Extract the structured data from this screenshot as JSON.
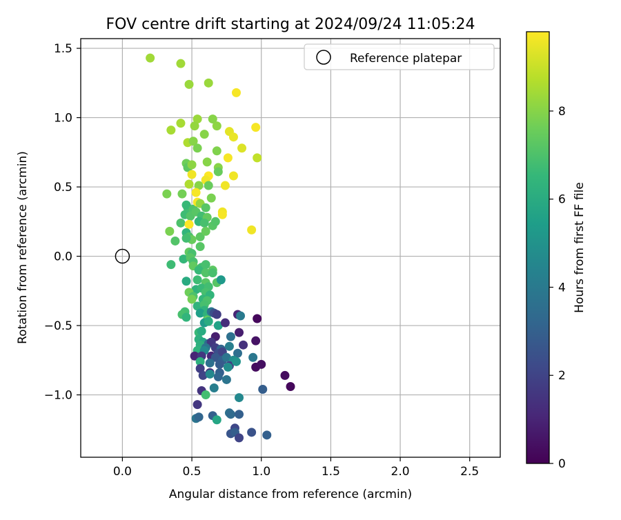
{
  "chart_data": {
    "type": "scatter",
    "title": "FOV centre drift starting at 2024/09/24 11:05:24",
    "xlabel": "Angular distance from reference (arcmin)",
    "ylabel": "Rotation from reference (arcmin)",
    "xlim": [
      -0.3,
      2.72
    ],
    "ylim": [
      -1.45,
      1.57
    ],
    "xticks": [
      0.0,
      0.5,
      1.0,
      1.5,
      2.0,
      2.5
    ],
    "xtick_labels": [
      "0.0",
      "0.5",
      "1.0",
      "1.5",
      "2.0",
      "2.5"
    ],
    "yticks": [
      -1.0,
      -0.5,
      0.0,
      0.5,
      1.0,
      1.5
    ],
    "ytick_labels": [
      "−1.0",
      "−0.5",
      "0.0",
      "0.5",
      "1.0",
      "1.5"
    ],
    "grid": true,
    "legend": {
      "placement": "top-right",
      "entries": [
        {
          "label": "Reference platepar",
          "marker": "open-circle"
        }
      ]
    },
    "reference_point": {
      "x": 0.0,
      "y": 0.0
    },
    "colorbar": {
      "label": "Hours from first FF file",
      "colormap": "viridis",
      "range": [
        0,
        9.8
      ],
      "ticks": [
        0,
        2,
        4,
        6,
        8
      ],
      "tick_labels": [
        "0",
        "2",
        "4",
        "6",
        "8"
      ]
    },
    "colormap_stops": [
      "#440154",
      "#482878",
      "#3e4989",
      "#31688e",
      "#26828e",
      "#1f9e89",
      "#35b779",
      "#6ece58",
      "#b5de2b",
      "#fde725"
    ],
    "points": [
      {
        "x": 0.2,
        "y": 1.43,
        "t": 8.4
      },
      {
        "x": 0.42,
        "y": 1.39,
        "t": 8.4
      },
      {
        "x": 0.48,
        "y": 1.24,
        "t": 8.3
      },
      {
        "x": 0.62,
        "y": 1.25,
        "t": 8.3
      },
      {
        "x": 0.82,
        "y": 1.18,
        "t": 9.7
      },
      {
        "x": 0.35,
        "y": 0.91,
        "t": 8.5
      },
      {
        "x": 0.42,
        "y": 0.96,
        "t": 8.5
      },
      {
        "x": 0.54,
        "y": 0.99,
        "t": 8.3
      },
      {
        "x": 0.52,
        "y": 0.94,
        "t": 8.2
      },
      {
        "x": 0.65,
        "y": 0.99,
        "t": 8.0
      },
      {
        "x": 0.68,
        "y": 0.94,
        "t": 8.1
      },
      {
        "x": 0.59,
        "y": 0.88,
        "t": 8.0
      },
      {
        "x": 0.77,
        "y": 0.9,
        "t": 9.4
      },
      {
        "x": 0.8,
        "y": 0.86,
        "t": 9.5
      },
      {
        "x": 0.96,
        "y": 0.93,
        "t": 9.7
      },
      {
        "x": 0.47,
        "y": 0.82,
        "t": 8.6
      },
      {
        "x": 0.51,
        "y": 0.83,
        "t": 8.0
      },
      {
        "x": 0.54,
        "y": 0.78,
        "t": 7.8
      },
      {
        "x": 0.68,
        "y": 0.76,
        "t": 7.9
      },
      {
        "x": 0.86,
        "y": 0.78,
        "t": 9.3
      },
      {
        "x": 0.76,
        "y": 0.71,
        "t": 9.7
      },
      {
        "x": 0.97,
        "y": 0.71,
        "t": 8.9
      },
      {
        "x": 0.46,
        "y": 0.67,
        "t": 7.6
      },
      {
        "x": 0.47,
        "y": 0.64,
        "t": 7.3
      },
      {
        "x": 0.5,
        "y": 0.66,
        "t": 8.1
      },
      {
        "x": 0.61,
        "y": 0.68,
        "t": 8.0
      },
      {
        "x": 0.69,
        "y": 0.64,
        "t": 8.0
      },
      {
        "x": 0.69,
        "y": 0.61,
        "t": 7.5
      },
      {
        "x": 0.5,
        "y": 0.59,
        "t": 9.6
      },
      {
        "x": 0.62,
        "y": 0.58,
        "t": 9.8
      },
      {
        "x": 0.6,
        "y": 0.55,
        "t": 9.6
      },
      {
        "x": 0.8,
        "y": 0.58,
        "t": 9.6
      },
      {
        "x": 0.48,
        "y": 0.52,
        "t": 8.6
      },
      {
        "x": 0.55,
        "y": 0.51,
        "t": 8.0
      },
      {
        "x": 0.62,
        "y": 0.51,
        "t": 7.5
      },
      {
        "x": 0.74,
        "y": 0.51,
        "t": 9.6
      },
      {
        "x": 0.32,
        "y": 0.45,
        "t": 7.8
      },
      {
        "x": 0.43,
        "y": 0.45,
        "t": 7.7
      },
      {
        "x": 0.53,
        "y": 0.46,
        "t": 9.7
      },
      {
        "x": 0.64,
        "y": 0.42,
        "t": 7.8
      },
      {
        "x": 0.47,
        "y": 0.35,
        "t": 6.8
      },
      {
        "x": 0.46,
        "y": 0.37,
        "t": 6.6
      },
      {
        "x": 0.51,
        "y": 0.34,
        "t": 7.0
      },
      {
        "x": 0.54,
        "y": 0.39,
        "t": 9.7
      },
      {
        "x": 0.56,
        "y": 0.38,
        "t": 8.2
      },
      {
        "x": 0.6,
        "y": 0.35,
        "t": 7.2
      },
      {
        "x": 0.72,
        "y": 0.32,
        "t": 9.6
      },
      {
        "x": 0.72,
        "y": 0.3,
        "t": 9.7
      },
      {
        "x": 0.45,
        "y": 0.3,
        "t": 6.7
      },
      {
        "x": 0.49,
        "y": 0.29,
        "t": 7.1
      },
      {
        "x": 0.53,
        "y": 0.32,
        "t": 7.2
      },
      {
        "x": 0.57,
        "y": 0.29,
        "t": 6.8
      },
      {
        "x": 0.55,
        "y": 0.25,
        "t": 6.5
      },
      {
        "x": 0.61,
        "y": 0.28,
        "t": 7.4
      },
      {
        "x": 0.42,
        "y": 0.24,
        "t": 7.0
      },
      {
        "x": 0.48,
        "y": 0.23,
        "t": 9.8
      },
      {
        "x": 0.59,
        "y": 0.24,
        "t": 6.9
      },
      {
        "x": 0.65,
        "y": 0.22,
        "t": 7.2
      },
      {
        "x": 0.67,
        "y": 0.25,
        "t": 7.1
      },
      {
        "x": 0.34,
        "y": 0.18,
        "t": 7.8
      },
      {
        "x": 0.46,
        "y": 0.17,
        "t": 6.4
      },
      {
        "x": 0.48,
        "y": 0.14,
        "t": 7.0
      },
      {
        "x": 0.5,
        "y": 0.12,
        "t": 7.5
      },
      {
        "x": 0.56,
        "y": 0.14,
        "t": 7.3
      },
      {
        "x": 0.6,
        "y": 0.18,
        "t": 7.5
      },
      {
        "x": 0.93,
        "y": 0.19,
        "t": 9.6
      },
      {
        "x": 0.38,
        "y": 0.11,
        "t": 7.1
      },
      {
        "x": 0.46,
        "y": 0.13,
        "t": 6.8
      },
      {
        "x": 0.56,
        "y": 0.07,
        "t": 7.2
      },
      {
        "x": 0.48,
        "y": 0.03,
        "t": 7.4
      },
      {
        "x": 0.5,
        "y": 0.02,
        "t": 6.9
      },
      {
        "x": 0.44,
        "y": -0.02,
        "t": 6.5
      },
      {
        "x": 0.49,
        "y": -0.01,
        "t": 7.2
      },
      {
        "x": 0.51,
        "y": -0.04,
        "t": 6.9
      },
      {
        "x": 0.35,
        "y": -0.06,
        "t": 6.7
      },
      {
        "x": 0.51,
        "y": -0.07,
        "t": 7.4
      },
      {
        "x": 0.57,
        "y": -0.08,
        "t": 6.8
      },
      {
        "x": 0.55,
        "y": -0.1,
        "t": 6.6
      },
      {
        "x": 0.6,
        "y": -0.06,
        "t": 6.9
      },
      {
        "x": 0.6,
        "y": -0.12,
        "t": 7.1
      },
      {
        "x": 0.65,
        "y": -0.1,
        "t": 7.3
      },
      {
        "x": 0.65,
        "y": -0.12,
        "t": 6.9
      },
      {
        "x": 0.46,
        "y": -0.18,
        "t": 6.0
      },
      {
        "x": 0.54,
        "y": -0.17,
        "t": 6.7
      },
      {
        "x": 0.6,
        "y": -0.19,
        "t": 7.2
      },
      {
        "x": 0.68,
        "y": -0.19,
        "t": 7.2
      },
      {
        "x": 0.71,
        "y": -0.17,
        "t": 5.3
      },
      {
        "x": 0.53,
        "y": -0.24,
        "t": 6.3
      },
      {
        "x": 0.57,
        "y": -0.23,
        "t": 6.6
      },
      {
        "x": 0.62,
        "y": -0.22,
        "t": 6.8
      },
      {
        "x": 0.48,
        "y": -0.26,
        "t": 7.6
      },
      {
        "x": 0.51,
        "y": -0.29,
        "t": 7.0
      },
      {
        "x": 0.6,
        "y": -0.26,
        "t": 6.9
      },
      {
        "x": 0.63,
        "y": -0.28,
        "t": 6.4
      },
      {
        "x": 0.5,
        "y": -0.31,
        "t": 7.7
      },
      {
        "x": 0.58,
        "y": -0.31,
        "t": 6.5
      },
      {
        "x": 0.61,
        "y": -0.32,
        "t": 7.0
      },
      {
        "x": 0.54,
        "y": -0.36,
        "t": 6.3
      },
      {
        "x": 0.59,
        "y": -0.35,
        "t": 6.9
      },
      {
        "x": 0.59,
        "y": -0.39,
        "t": 6.3
      },
      {
        "x": 0.45,
        "y": -0.4,
        "t": 6.8
      },
      {
        "x": 0.43,
        "y": -0.42,
        "t": 6.9
      },
      {
        "x": 0.46,
        "y": -0.44,
        "t": 6.4
      },
      {
        "x": 0.56,
        "y": -0.41,
        "t": 5.5
      },
      {
        "x": 0.61,
        "y": -0.42,
        "t": 6.3
      },
      {
        "x": 0.64,
        "y": -0.4,
        "t": 3.8
      },
      {
        "x": 0.66,
        "y": -0.41,
        "t": 2.4
      },
      {
        "x": 0.68,
        "y": -0.42,
        "t": 1.8
      },
      {
        "x": 0.83,
        "y": -0.42,
        "t": 1.0
      },
      {
        "x": 0.85,
        "y": -0.43,
        "t": 4.0
      },
      {
        "x": 0.61,
        "y": -0.46,
        "t": 7.4
      },
      {
        "x": 0.59,
        "y": -0.48,
        "t": 5.3
      },
      {
        "x": 0.62,
        "y": -0.47,
        "t": 6.0
      },
      {
        "x": 0.69,
        "y": -0.5,
        "t": 5.6
      },
      {
        "x": 0.74,
        "y": -0.48,
        "t": 1.3
      },
      {
        "x": 0.97,
        "y": -0.45,
        "t": 0.2
      },
      {
        "x": 0.55,
        "y": -0.55,
        "t": 6.6
      },
      {
        "x": 0.57,
        "y": -0.54,
        "t": 6.0
      },
      {
        "x": 0.67,
        "y": -0.58,
        "t": 0.8
      },
      {
        "x": 0.78,
        "y": -0.58,
        "t": 3.6
      },
      {
        "x": 0.84,
        "y": -0.55,
        "t": 0.8
      },
      {
        "x": 0.55,
        "y": -0.6,
        "t": 6.2
      },
      {
        "x": 0.58,
        "y": -0.62,
        "t": 5.8
      },
      {
        "x": 0.62,
        "y": -0.63,
        "t": 3.3
      },
      {
        "x": 0.64,
        "y": -0.62,
        "t": 1.6
      },
      {
        "x": 0.56,
        "y": -0.64,
        "t": 6.2
      },
      {
        "x": 0.6,
        "y": -0.66,
        "t": 3.8
      },
      {
        "x": 0.67,
        "y": -0.66,
        "t": 1.8
      },
      {
        "x": 0.71,
        "y": -0.67,
        "t": 3.2
      },
      {
        "x": 0.77,
        "y": -0.65,
        "t": 4.2
      },
      {
        "x": 0.87,
        "y": -0.64,
        "t": 1.4
      },
      {
        "x": 0.96,
        "y": -0.61,
        "t": 0.5
      },
      {
        "x": 0.54,
        "y": -0.68,
        "t": 6.3
      },
      {
        "x": 0.59,
        "y": -0.68,
        "t": 4.6
      },
      {
        "x": 0.69,
        "y": -0.7,
        "t": 2.4
      },
      {
        "x": 0.72,
        "y": -0.69,
        "t": 2.0
      },
      {
        "x": 0.83,
        "y": -0.7,
        "t": 3.5
      },
      {
        "x": 0.52,
        "y": -0.72,
        "t": 1.0
      },
      {
        "x": 0.57,
        "y": -0.72,
        "t": 1.6
      },
      {
        "x": 0.64,
        "y": -0.72,
        "t": 1.1
      },
      {
        "x": 0.67,
        "y": -0.73,
        "t": 2.7
      },
      {
        "x": 0.72,
        "y": -0.75,
        "t": 3.0
      },
      {
        "x": 0.75,
        "y": -0.73,
        "t": 3.8
      },
      {
        "x": 0.8,
        "y": -0.75,
        "t": 4.8
      },
      {
        "x": 0.94,
        "y": -0.73,
        "t": 3.9
      },
      {
        "x": 0.56,
        "y": -0.76,
        "t": 6.2
      },
      {
        "x": 0.63,
        "y": -0.77,
        "t": 3.6
      },
      {
        "x": 0.7,
        "y": -0.78,
        "t": 2.8
      },
      {
        "x": 0.77,
        "y": -0.79,
        "t": 1.8
      },
      {
        "x": 0.82,
        "y": -0.76,
        "t": 5.0
      },
      {
        "x": 0.96,
        "y": -0.8,
        "t": 0.3
      },
      {
        "x": 1.0,
        "y": -0.78,
        "t": 0.4
      },
      {
        "x": 0.56,
        "y": -0.81,
        "t": 1.8
      },
      {
        "x": 0.63,
        "y": -0.84,
        "t": 1.2
      },
      {
        "x": 0.7,
        "y": -0.84,
        "t": 3.0
      },
      {
        "x": 0.76,
        "y": -0.8,
        "t": 4.8
      },
      {
        "x": 0.58,
        "y": -0.86,
        "t": 2.0
      },
      {
        "x": 0.63,
        "y": -0.85,
        "t": 4.6
      },
      {
        "x": 0.69,
        "y": -0.87,
        "t": 3.2
      },
      {
        "x": 1.17,
        "y": -0.86,
        "t": 0.3
      },
      {
        "x": 0.75,
        "y": -0.89,
        "t": 3.8
      },
      {
        "x": 0.66,
        "y": -0.95,
        "t": 4.2
      },
      {
        "x": 0.57,
        "y": -0.97,
        "t": 1.5
      },
      {
        "x": 0.6,
        "y": -1.0,
        "t": 6.8
      },
      {
        "x": 1.01,
        "y": -0.96,
        "t": 2.9
      },
      {
        "x": 1.21,
        "y": -0.94,
        "t": 0.2
      },
      {
        "x": 0.84,
        "y": -1.02,
        "t": 4.6
      },
      {
        "x": 0.54,
        "y": -1.07,
        "t": 1.6
      },
      {
        "x": 0.77,
        "y": -1.13,
        "t": 3.6
      },
      {
        "x": 0.78,
        "y": -1.14,
        "t": 3.4
      },
      {
        "x": 0.84,
        "y": -1.14,
        "t": 3.0
      },
      {
        "x": 0.53,
        "y": -1.17,
        "t": 3.8
      },
      {
        "x": 0.55,
        "y": -1.16,
        "t": 3.2
      },
      {
        "x": 0.65,
        "y": -1.15,
        "t": 3.0
      },
      {
        "x": 0.68,
        "y": -1.18,
        "t": 5.8
      },
      {
        "x": 0.81,
        "y": -1.24,
        "t": 2.1
      },
      {
        "x": 0.78,
        "y": -1.28,
        "t": 2.6
      },
      {
        "x": 0.81,
        "y": -1.27,
        "t": 2.9
      },
      {
        "x": 0.84,
        "y": -1.31,
        "t": 2.0
      },
      {
        "x": 0.93,
        "y": -1.27,
        "t": 2.5
      },
      {
        "x": 1.04,
        "y": -1.29,
        "t": 3.0
      }
    ]
  }
}
